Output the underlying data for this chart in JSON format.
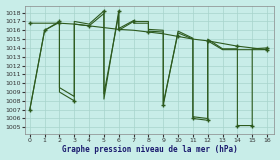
{
  "title": "Graphe pression niveau de la mer (hPa)",
  "bg_color": "#c8ede8",
  "grid_color": "#a8d4cc",
  "line_color": "#2d5a1e",
  "xlim": [
    -0.3,
    16.5
  ],
  "ylim": [
    1004.3,
    1018.8
  ],
  "yticks": [
    1005,
    1006,
    1007,
    1008,
    1009,
    1010,
    1011,
    1012,
    1013,
    1014,
    1015,
    1016,
    1017,
    1018
  ],
  "xticks": [
    0,
    1,
    2,
    3,
    4,
    5,
    6,
    7,
    8,
    9,
    10,
    11,
    12,
    13,
    14,
    15,
    16
  ],
  "line1_x": [
    0,
    1,
    2,
    2,
    3,
    3,
    4,
    5,
    5,
    6,
    6,
    7,
    7,
    8,
    8,
    9,
    9,
    10,
    11,
    11,
    12,
    12,
    13,
    14,
    14,
    15,
    15,
    16
  ],
  "line1_y": [
    1007,
    1016,
    1017,
    1009,
    1008,
    1017,
    1016.7,
    1018.2,
    1008.2,
    1018.2,
    1016.2,
    1017.1,
    1017.0,
    1017.0,
    1016.1,
    1016.0,
    1007.5,
    1015.9,
    1015.1,
    1006.0,
    1005.8,
    1015.0,
    1013.9,
    1013.9,
    1005.2,
    1005.2,
    1013.9,
    1014.0
  ],
  "line2_x": [
    0,
    1,
    2,
    3,
    4,
    5,
    6,
    7,
    8,
    9,
    10,
    11,
    12,
    13,
    14,
    15,
    16
  ],
  "line2_y": [
    1016.8,
    1016.8,
    1016.8,
    1016.7,
    1016.5,
    1016.3,
    1016.1,
    1016.0,
    1015.8,
    1015.6,
    1015.3,
    1015.0,
    1014.8,
    1014.5,
    1014.2,
    1014.0,
    1013.8
  ],
  "line3_x": [
    0,
    1,
    2,
    2,
    3,
    3,
    4,
    5,
    5,
    6,
    6,
    7,
    7,
    8,
    8,
    9,
    9,
    10,
    11,
    11,
    12,
    12,
    13,
    14,
    15,
    16
  ],
  "line3_y": [
    1007,
    1016,
    1016.9,
    1009.5,
    1008.5,
    1016.7,
    1016.5,
    1017.9,
    1008.8,
    1017.8,
    1016.0,
    1017.0,
    1016.8,
    1016.8,
    1015.9,
    1015.8,
    1007.7,
    1015.7,
    1015.0,
    1006.2,
    1006.0,
    1014.8,
    1013.8,
    1013.8,
    1013.8,
    1013.8
  ],
  "markers_x": [
    0,
    1,
    2,
    3,
    5,
    6,
    7,
    9,
    11,
    12,
    14,
    15,
    16
  ],
  "markers_y": [
    1007,
    1016,
    1017,
    1008,
    1018.2,
    1018.2,
    1017.1,
    1007.5,
    1006.0,
    1005.8,
    1005.2,
    1005.2,
    1014.0
  ],
  "trend_markers_x": [
    0,
    2,
    4,
    6,
    8,
    10,
    12,
    14,
    16
  ],
  "trend_markers_y": [
    1016.8,
    1016.8,
    1016.5,
    1016.1,
    1015.8,
    1015.3,
    1014.8,
    1014.2,
    1013.8
  ]
}
